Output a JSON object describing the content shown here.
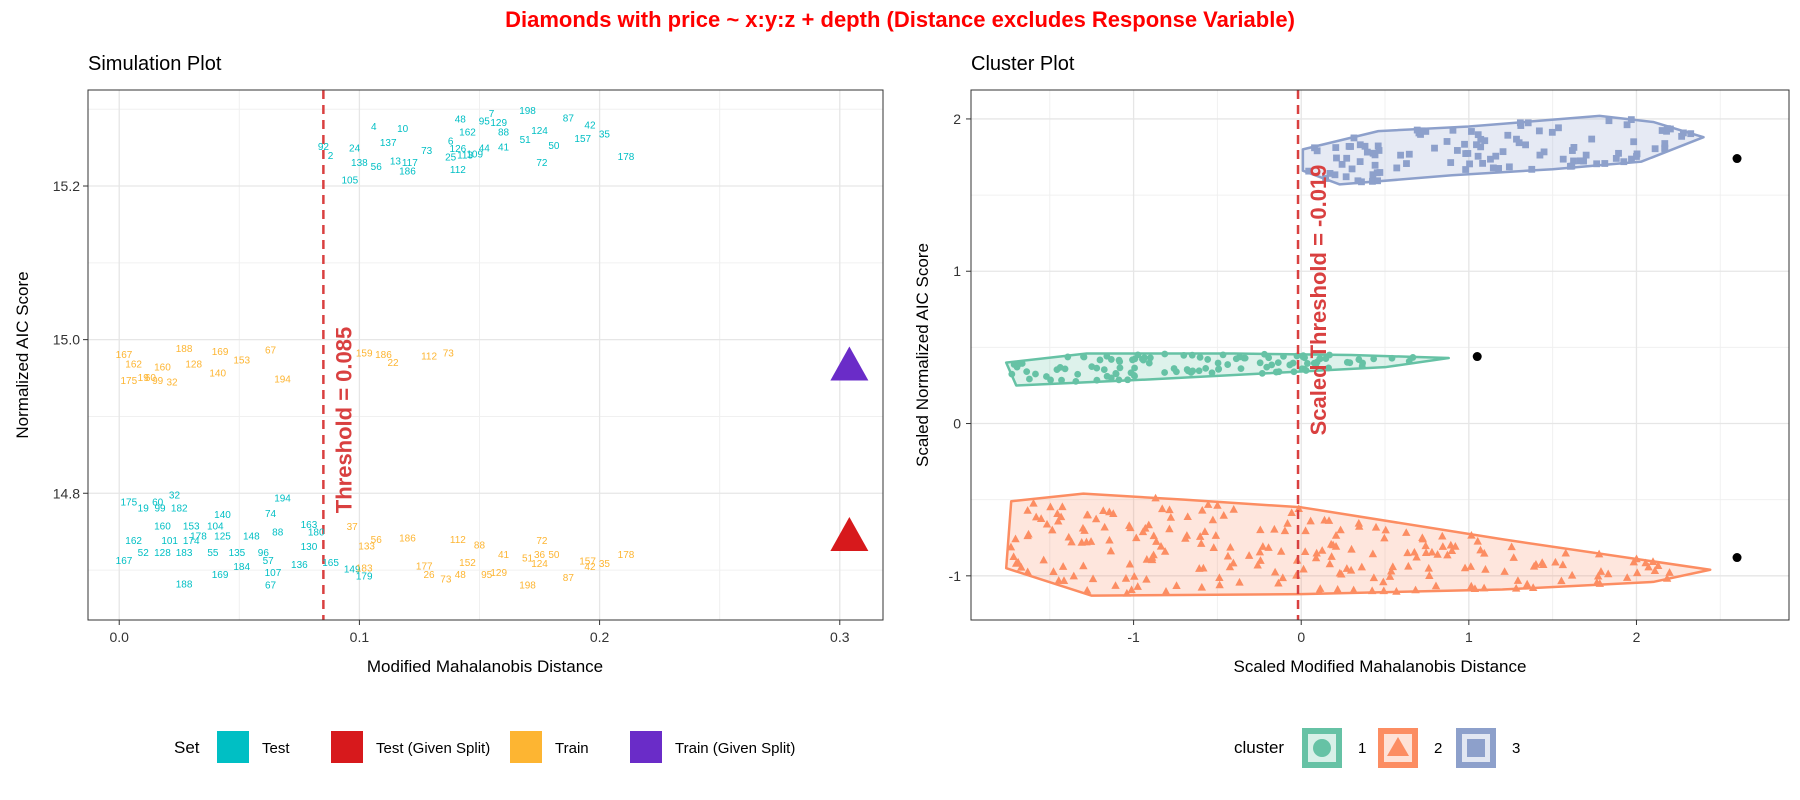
{
  "title": "Diamonds with price ~ x:y:z + depth (Distance excludes Response Variable)",
  "colors": {
    "test": "#00BFC4",
    "test_given": "#D7191C",
    "train": "#FDB532",
    "train_given": "#6A2CC8",
    "threshold": "#D94040",
    "cluster1": "#66C2A5",
    "cluster2": "#FC8D62",
    "cluster3": "#8DA0CB"
  },
  "chart_data": [
    {
      "type": "scatter",
      "subtitle": "Simulation Plot",
      "xlabel": "Modified Mahalanobis Distance",
      "ylabel": "Normalized AIC Score",
      "xlim": [
        -0.013,
        0.318
      ],
      "ylim": [
        14.635,
        15.325
      ],
      "xticks": [
        "0.0",
        "0.1",
        "0.2",
        "0.3"
      ],
      "xtick_values": [
        0.0,
        0.1,
        0.2,
        0.3
      ],
      "yticks": [
        "14.8",
        "15.0",
        "15.2"
      ],
      "ytick_values": [
        14.8,
        15.0,
        15.2
      ],
      "threshold": {
        "label": "Threshold = 0.085",
        "value": 0.085
      },
      "legend_title": "Set",
      "legend": [
        "Test",
        "Test (Given Split)",
        "Train",
        "Train (Given Split)"
      ],
      "series": [
        {
          "name": "Test",
          "labels": [
            {
              "t": "198",
              "x": 0.17,
              "y": 15.294
            },
            {
              "t": "87",
              "x": 0.187,
              "y": 15.284
            },
            {
              "t": "42",
              "x": 0.196,
              "y": 15.275
            },
            {
              "t": "35",
              "x": 0.202,
              "y": 15.263
            },
            {
              "t": "7",
              "x": 0.155,
              "y": 15.29
            },
            {
              "t": "48",
              "x": 0.142,
              "y": 15.283
            },
            {
              "t": "95",
              "x": 0.152,
              "y": 15.28
            },
            {
              "t": "129",
              "x": 0.158,
              "y": 15.278
            },
            {
              "t": "4",
              "x": 0.106,
              "y": 15.273
            },
            {
              "t": "10",
              "x": 0.118,
              "y": 15.27
            },
            {
              "t": "162",
              "x": 0.145,
              "y": 15.266
            },
            {
              "t": "88",
              "x": 0.16,
              "y": 15.266
            },
            {
              "t": "124",
              "x": 0.175,
              "y": 15.268
            },
            {
              "t": "157",
              "x": 0.193,
              "y": 15.257
            },
            {
              "t": "51",
              "x": 0.169,
              "y": 15.256
            },
            {
              "t": "50",
              "x": 0.181,
              "y": 15.248
            },
            {
              "t": "178",
              "x": 0.211,
              "y": 15.234
            },
            {
              "t": "72",
              "x": 0.176,
              "y": 15.226
            },
            {
              "t": "92",
              "x": 0.085,
              "y": 15.247
            },
            {
              "t": "2",
              "x": 0.088,
              "y": 15.235
            },
            {
              "t": "24",
              "x": 0.098,
              "y": 15.245
            },
            {
              "t": "138",
              "x": 0.1,
              "y": 15.226
            },
            {
              "t": "56",
              "x": 0.107,
              "y": 15.221
            },
            {
              "t": "13",
              "x": 0.115,
              "y": 15.228
            },
            {
              "t": "117",
              "x": 0.121,
              "y": 15.226
            },
            {
              "t": "186",
              "x": 0.12,
              "y": 15.215
            },
            {
              "t": "6",
              "x": 0.138,
              "y": 15.254
            },
            {
              "t": "126",
              "x": 0.141,
              "y": 15.244
            },
            {
              "t": "25",
              "x": 0.138,
              "y": 15.233
            },
            {
              "t": "113",
              "x": 0.144,
              "y": 15.236
            },
            {
              "t": "44",
              "x": 0.152,
              "y": 15.245
            },
            {
              "t": "41",
              "x": 0.16,
              "y": 15.246
            },
            {
              "t": "112",
              "x": 0.141,
              "y": 15.217
            },
            {
              "t": "109",
              "x": 0.148,
              "y": 15.237
            },
            {
              "t": "105",
              "x": 0.096,
              "y": 15.203
            },
            {
              "t": "137",
              "x": 0.112,
              "y": 15.252
            },
            {
              "t": "73",
              "x": 0.128,
              "y": 15.242
            },
            {
              "t": "194",
              "x": 0.068,
              "y": 14.789
            },
            {
              "t": "32",
              "x": 0.023,
              "y": 14.793
            },
            {
              "t": "175",
              "x": 0.004,
              "y": 14.784
            },
            {
              "t": "60",
              "x": 0.016,
              "y": 14.784
            },
            {
              "t": "19",
              "x": 0.01,
              "y": 14.776
            },
            {
              "t": "99",
              "x": 0.017,
              "y": 14.776
            },
            {
              "t": "182",
              "x": 0.025,
              "y": 14.776
            },
            {
              "t": "140",
              "x": 0.043,
              "y": 14.768
            },
            {
              "t": "74",
              "x": 0.063,
              "y": 14.769
            },
            {
              "t": "163",
              "x": 0.079,
              "y": 14.755
            },
            {
              "t": "160",
              "x": 0.018,
              "y": 14.753
            },
            {
              "t": "153",
              "x": 0.03,
              "y": 14.753
            },
            {
              "t": "104",
              "x": 0.04,
              "y": 14.753
            },
            {
              "t": "178",
              "x": 0.033,
              "y": 14.74
            },
            {
              "t": "125",
              "x": 0.043,
              "y": 14.74
            },
            {
              "t": "148",
              "x": 0.055,
              "y": 14.74
            },
            {
              "t": "88",
              "x": 0.066,
              "y": 14.745
            },
            {
              "t": "162",
              "x": 0.006,
              "y": 14.734
            },
            {
              "t": "101",
              "x": 0.021,
              "y": 14.734
            },
            {
              "t": "174",
              "x": 0.03,
              "y": 14.734
            },
            {
              "t": "52",
              "x": 0.01,
              "y": 14.718
            },
            {
              "t": "128",
              "x": 0.018,
              "y": 14.718
            },
            {
              "t": "183",
              "x": 0.027,
              "y": 14.718
            },
            {
              "t": "55",
              "x": 0.039,
              "y": 14.718
            },
            {
              "t": "135",
              "x": 0.049,
              "y": 14.718
            },
            {
              "t": "96",
              "x": 0.06,
              "y": 14.718
            },
            {
              "t": "167",
              "x": 0.002,
              "y": 14.708
            },
            {
              "t": "188",
              "x": 0.027,
              "y": 14.677
            },
            {
              "t": "169",
              "x": 0.042,
              "y": 14.69
            },
            {
              "t": "107",
              "x": 0.064,
              "y": 14.692
            },
            {
              "t": "67",
              "x": 0.063,
              "y": 14.676
            },
            {
              "t": "184",
              "x": 0.051,
              "y": 14.7
            },
            {
              "t": "57",
              "x": 0.062,
              "y": 14.708
            },
            {
              "t": "136",
              "x": 0.075,
              "y": 14.703
            },
            {
              "t": "165",
              "x": 0.088,
              "y": 14.705
            },
            {
              "t": "179",
              "x": 0.102,
              "y": 14.688
            },
            {
              "t": "149",
              "x": 0.097,
              "y": 14.697
            },
            {
              "t": "180",
              "x": 0.082,
              "y": 14.745
            },
            {
              "t": "130",
              "x": 0.079,
              "y": 14.726
            }
          ]
        },
        {
          "name": "Train",
          "labels": [
            {
              "t": "167",
              "x": 0.002,
              "y": 14.976
            },
            {
              "t": "188",
              "x": 0.027,
              "y": 14.984
            },
            {
              "t": "169",
              "x": 0.042,
              "y": 14.98
            },
            {
              "t": "67",
              "x": 0.063,
              "y": 14.982
            },
            {
              "t": "186",
              "x": 0.11,
              "y": 14.976
            },
            {
              "t": "112",
              "x": 0.129,
              "y": 14.974
            },
            {
              "t": "73",
              "x": 0.137,
              "y": 14.978
            },
            {
              "t": "162",
              "x": 0.006,
              "y": 14.964
            },
            {
              "t": "160",
              "x": 0.018,
              "y": 14.96
            },
            {
              "t": "128",
              "x": 0.031,
              "y": 14.964
            },
            {
              "t": "153",
              "x": 0.051,
              "y": 14.969
            },
            {
              "t": "175",
              "x": 0.004,
              "y": 14.942
            },
            {
              "t": "19",
              "x": 0.01,
              "y": 14.946
            },
            {
              "t": "99",
              "x": 0.016,
              "y": 14.942
            },
            {
              "t": "60",
              "x": 0.013,
              "y": 14.946
            },
            {
              "t": "32",
              "x": 0.022,
              "y": 14.94
            },
            {
              "t": "194",
              "x": 0.068,
              "y": 14.944
            },
            {
              "t": "140",
              "x": 0.041,
              "y": 14.952
            },
            {
              "t": "22",
              "x": 0.114,
              "y": 14.966
            },
            {
              "t": "159",
              "x": 0.102,
              "y": 14.978
            },
            {
              "t": "198",
              "x": 0.17,
              "y": 14.676
            },
            {
              "t": "87",
              "x": 0.187,
              "y": 14.686
            },
            {
              "t": "42",
              "x": 0.196,
              "y": 14.7
            },
            {
              "t": "35",
              "x": 0.202,
              "y": 14.704
            },
            {
              "t": "157",
              "x": 0.195,
              "y": 14.707
            },
            {
              "t": "178",
              "x": 0.211,
              "y": 14.716
            },
            {
              "t": "72",
              "x": 0.176,
              "y": 14.734
            },
            {
              "t": "36",
              "x": 0.175,
              "y": 14.716
            },
            {
              "t": "50",
              "x": 0.181,
              "y": 14.716
            },
            {
              "t": "51",
              "x": 0.17,
              "y": 14.711
            },
            {
              "t": "112",
              "x": 0.141,
              "y": 14.735
            },
            {
              "t": "186",
              "x": 0.12,
              "y": 14.737
            },
            {
              "t": "56",
              "x": 0.107,
              "y": 14.735
            },
            {
              "t": "26",
              "x": 0.129,
              "y": 14.69
            },
            {
              "t": "73",
              "x": 0.136,
              "y": 14.684
            },
            {
              "t": "48",
              "x": 0.142,
              "y": 14.69
            },
            {
              "t": "95",
              "x": 0.153,
              "y": 14.69
            },
            {
              "t": "129",
              "x": 0.158,
              "y": 14.692
            },
            {
              "t": "177",
              "x": 0.127,
              "y": 14.701
            },
            {
              "t": "41",
              "x": 0.16,
              "y": 14.716
            },
            {
              "t": "152",
              "x": 0.145,
              "y": 14.705
            },
            {
              "t": "124",
              "x": 0.175,
              "y": 14.704
            },
            {
              "t": "88",
              "x": 0.15,
              "y": 14.728
            },
            {
              "t": "183",
              "x": 0.102,
              "y": 14.698
            },
            {
              "t": "37",
              "x": 0.097,
              "y": 14.752
            },
            {
              "t": "133",
              "x": 0.103,
              "y": 14.727
            }
          ]
        },
        {
          "name": "Test (Given Split)",
          "points": [
            {
              "x": 0.304,
              "y": 14.743
            }
          ]
        },
        {
          "name": "Train (Given Split)",
          "points": [
            {
              "x": 0.304,
              "y": 14.965
            }
          ]
        }
      ]
    },
    {
      "type": "scatter",
      "subtitle": "Cluster Plot",
      "xlabel": "Scaled Modified Mahalanobis Distance",
      "ylabel": "Scaled Normalized AIC Score",
      "xlim": [
        -1.97,
        2.91
      ],
      "ylim": [
        -1.29,
        2.19
      ],
      "xticks": [
        "-1",
        "0",
        "1",
        "2"
      ],
      "xtick_values": [
        -1,
        0,
        1,
        2
      ],
      "yticks": [
        "-1",
        "0",
        "1",
        "2"
      ],
      "ytick_values": [
        -1,
        0,
        1,
        2
      ],
      "threshold": {
        "label": "Scaled Threshold = -0.019",
        "value": -0.019
      },
      "legend_title": "cluster",
      "legend": [
        "1",
        "2",
        "3"
      ],
      "clusters": [
        {
          "name": "1",
          "hull": [
            [
              -1.76,
              0.4
            ],
            [
              -1.28,
              0.46
            ],
            [
              -0.4,
              0.46
            ],
            [
              0.3,
              0.45
            ],
            [
              0.88,
              0.43
            ],
            [
              0.5,
              0.37
            ],
            [
              -0.2,
              0.33
            ],
            [
              -0.9,
              0.29
            ],
            [
              -1.7,
              0.25
            ]
          ],
          "range_x": [
            -1.75,
            0.88
          ],
          "range_y": [
            0.26,
            0.46
          ],
          "count": 110
        },
        {
          "name": "2",
          "hull": [
            [
              -1.73,
              -0.51
            ],
            [
              -1.3,
              -0.46
            ],
            [
              -0.7,
              -0.5
            ],
            [
              0.0,
              -0.55
            ],
            [
              1.2,
              -0.76
            ],
            [
              2.44,
              -0.96
            ],
            [
              2.1,
              -1.04
            ],
            [
              1.2,
              -1.09
            ],
            [
              0.0,
              -1.12
            ],
            [
              -1.25,
              -1.13
            ],
            [
              -1.76,
              -0.95
            ]
          ],
          "range_x": [
            -1.74,
            2.43
          ],
          "range_y": [
            -1.12,
            -0.47
          ],
          "count": 220
        },
        {
          "name": "3",
          "hull": [
            [
              0.01,
              1.8
            ],
            [
              0.46,
              1.92
            ],
            [
              1.0,
              1.95
            ],
            [
              1.78,
              2.02
            ],
            [
              2.1,
              1.98
            ],
            [
              2.4,
              1.88
            ],
            [
              2.03,
              1.72
            ],
            [
              1.5,
              1.67
            ],
            [
              0.9,
              1.63
            ],
            [
              0.23,
              1.57
            ],
            [
              0.01,
              1.66
            ]
          ],
          "range_x": [
            0.01,
            2.4
          ],
          "range_y": [
            1.58,
            2.02
          ],
          "count": 110
        }
      ],
      "given_split_points": [
        {
          "x": 2.6,
          "y": 1.74
        },
        {
          "x": 1.05,
          "y": 0.44
        },
        {
          "x": 2.6,
          "y": -0.88
        }
      ]
    }
  ]
}
